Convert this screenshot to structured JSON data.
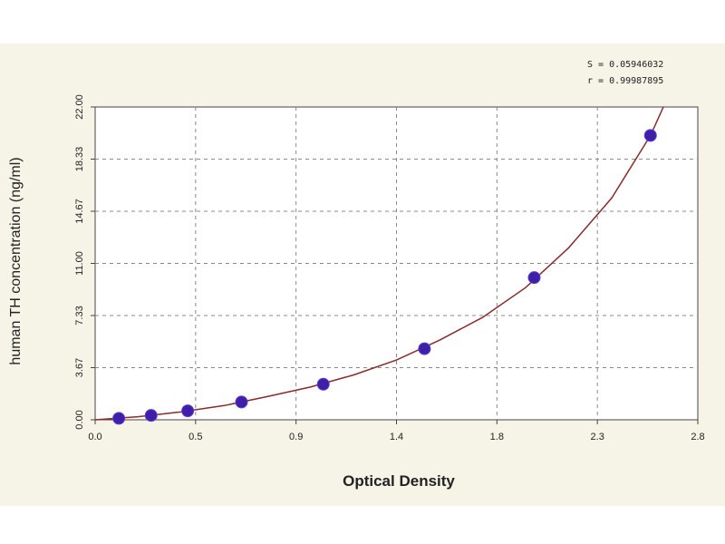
{
  "chart_data": {
    "type": "scatter",
    "title": "",
    "xlabel": "Optical Density",
    "ylabel": "human TH concentration (ng/ml)",
    "xlim": [
      0.0,
      2.8
    ],
    "ylim": [
      0.0,
      22.0
    ],
    "x_ticks": [
      "0.0",
      "0.5",
      "0.9",
      "1.4",
      "1.8",
      "2.3",
      "2.8"
    ],
    "y_ticks": [
      "0.00",
      "3.67",
      "7.33",
      "11.00",
      "14.67",
      "18.33",
      "22.00"
    ],
    "grid": true,
    "points": [
      {
        "x": 0.11,
        "y": 0.1
      },
      {
        "x": 0.26,
        "y": 0.31
      },
      {
        "x": 0.43,
        "y": 0.63
      },
      {
        "x": 0.68,
        "y": 1.25
      },
      {
        "x": 1.06,
        "y": 2.5
      },
      {
        "x": 1.53,
        "y": 5.0
      },
      {
        "x": 2.04,
        "y": 10.0
      },
      {
        "x": 2.58,
        "y": 20.0
      }
    ],
    "fit_curve": [
      {
        "x": 0.0,
        "y": 0.0
      },
      {
        "x": 0.2,
        "y": 0.22
      },
      {
        "x": 0.4,
        "y": 0.56
      },
      {
        "x": 0.6,
        "y": 1.0
      },
      {
        "x": 0.8,
        "y": 1.63
      },
      {
        "x": 1.0,
        "y": 2.3
      },
      {
        "x": 1.2,
        "y": 3.15
      },
      {
        "x": 1.4,
        "y": 4.2
      },
      {
        "x": 1.6,
        "y": 5.6
      },
      {
        "x": 1.8,
        "y": 7.2
      },
      {
        "x": 2.0,
        "y": 9.3
      },
      {
        "x": 2.2,
        "y": 12.1
      },
      {
        "x": 2.4,
        "y": 15.6
      },
      {
        "x": 2.58,
        "y": 20.0
      },
      {
        "x": 2.64,
        "y": 22.0
      }
    ],
    "stats": [
      "S = 0.05946032",
      "r = 0.99987895"
    ],
    "colors": {
      "marker": "#3f1fa8",
      "curve": "#8b2a2a",
      "grid": "#8a8a8a",
      "plot_bg": "#ffffff",
      "figure_bg": "#f6f4e7"
    }
  }
}
